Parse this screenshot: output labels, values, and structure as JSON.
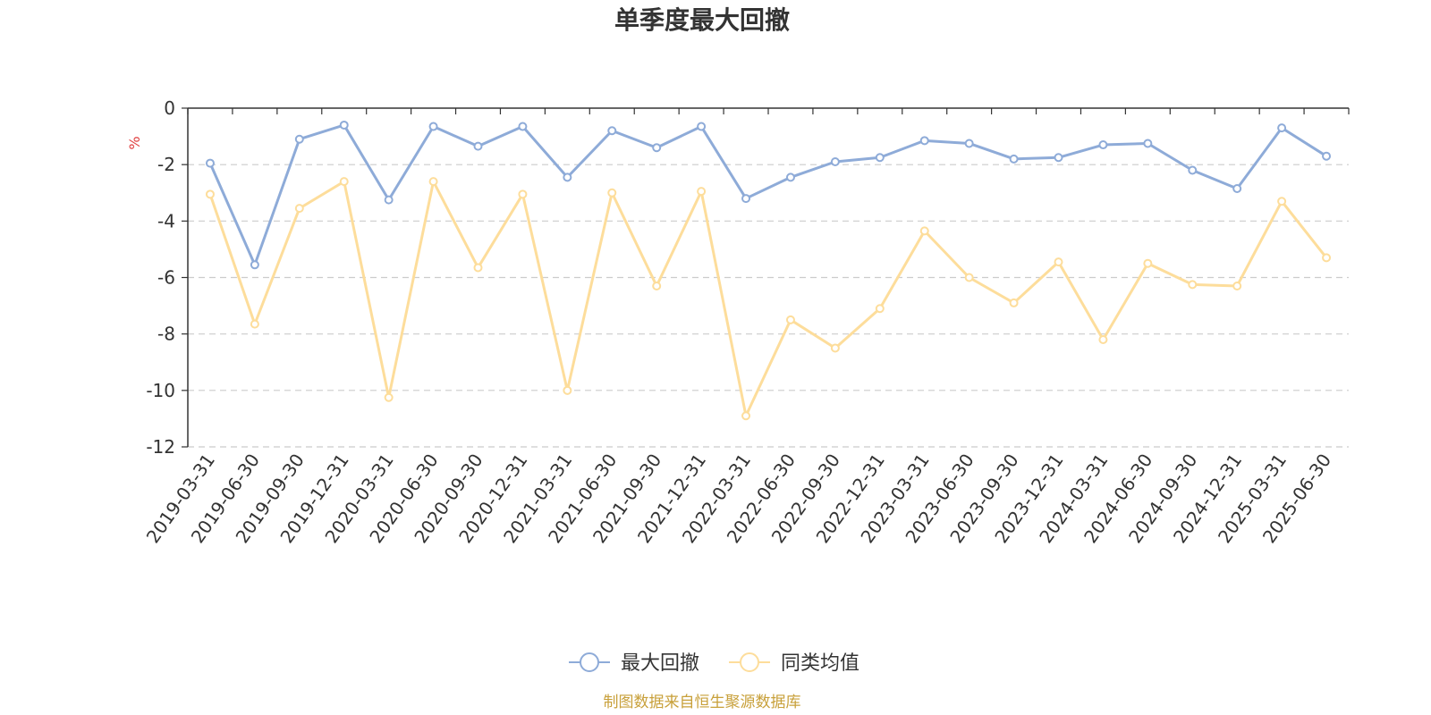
{
  "chart_data": {
    "type": "line",
    "title": "单季度最大回撤",
    "ylabel": "%",
    "ylim": [
      -12,
      0
    ],
    "yticks": [
      0,
      -2,
      -4,
      -6,
      -8,
      -10,
      -12
    ],
    "grid": true,
    "legend_position": "bottom",
    "categories": [
      "2019-03-31",
      "2019-06-30",
      "2019-09-30",
      "2019-12-31",
      "2020-03-31",
      "2020-06-30",
      "2020-09-30",
      "2020-12-31",
      "2021-03-31",
      "2021-06-30",
      "2021-09-30",
      "2021-12-31",
      "2022-03-31",
      "2022-06-30",
      "2022-09-30",
      "2022-12-31",
      "2023-03-31",
      "2023-06-30",
      "2023-09-30",
      "2023-12-31",
      "2024-03-31",
      "2024-06-30",
      "2024-09-30",
      "2024-12-31",
      "2025-03-31",
      "2025-06-30"
    ],
    "series": [
      {
        "name": "最大回撤",
        "color": "#8eabd8",
        "values": [
          -1.95,
          -5.55,
          -1.1,
          -0.6,
          -3.25,
          -0.65,
          -1.35,
          -0.65,
          -2.45,
          -0.8,
          -1.4,
          -0.65,
          -3.2,
          -2.45,
          -1.9,
          -1.75,
          -1.15,
          -1.25,
          -1.8,
          -1.75,
          -1.3,
          -1.25,
          -2.2,
          -2.85,
          -0.7,
          -1.7
        ]
      },
      {
        "name": "同类均值",
        "color": "#fddd9b",
        "values": [
          -3.05,
          -7.65,
          -3.55,
          -2.6,
          -10.25,
          -2.6,
          -5.65,
          -3.05,
          -10.0,
          -3.0,
          -6.3,
          -2.95,
          -10.9,
          -7.5,
          -8.5,
          -7.1,
          -4.35,
          -6.0,
          -6.9,
          -5.45,
          -8.2,
          -5.5,
          -6.25,
          -6.3,
          -3.3,
          -5.3
        ]
      }
    ],
    "source": "制图数据来自恒生聚源数据库",
    "colors": {
      "unit": "#e04040",
      "source": "#c8a03a",
      "axis": "#333333",
      "grid": "#cccccc"
    }
  }
}
